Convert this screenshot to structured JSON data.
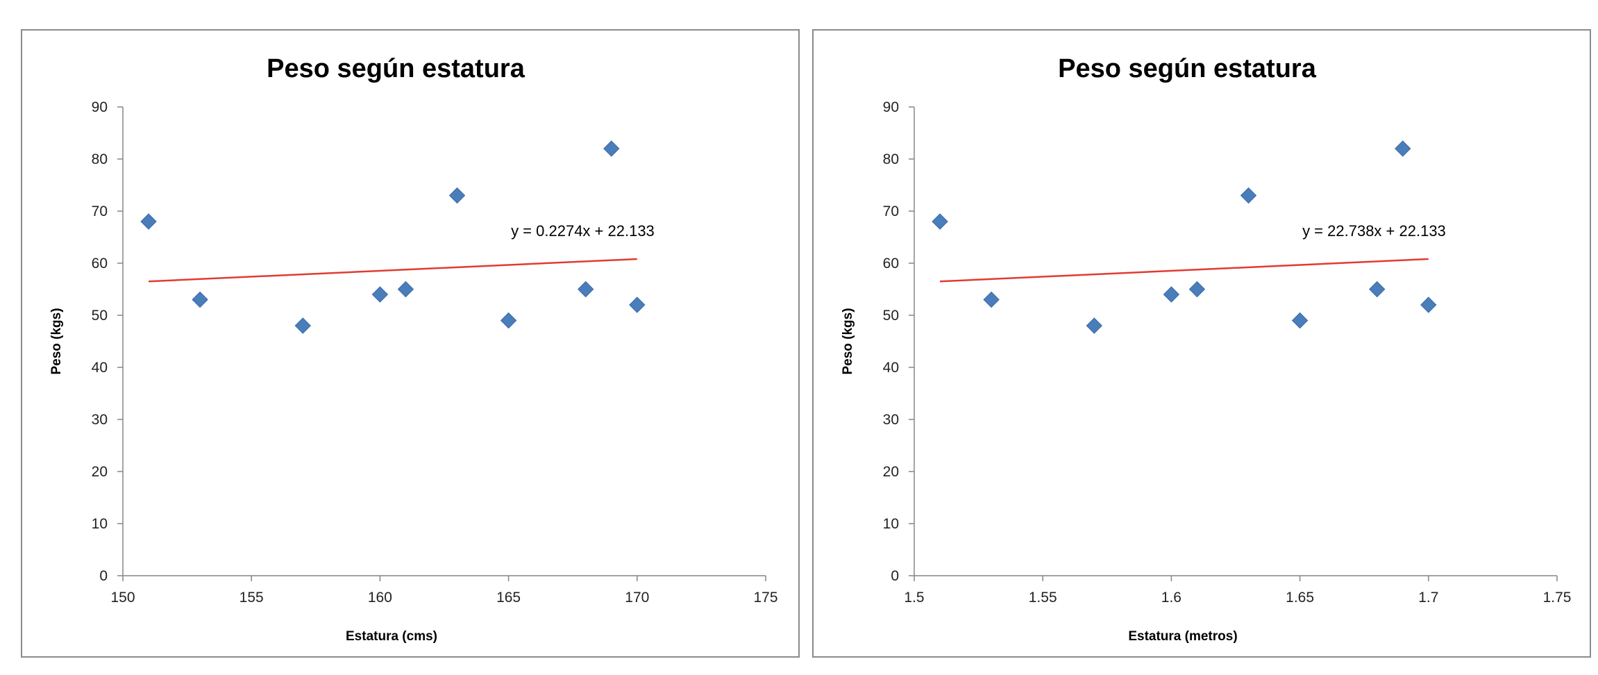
{
  "chart_data": [
    {
      "type": "scatter",
      "title": "Peso según estatura",
      "xlabel": "Estatura  (cms)",
      "ylabel": "Peso (kgs)",
      "xlim": [
        150,
        175
      ],
      "ylim": [
        0,
        90
      ],
      "x_ticks": [
        "150",
        "155",
        "160",
        "165",
        "170",
        "175"
      ],
      "y_ticks": [
        "0",
        "10",
        "20",
        "30",
        "40",
        "50",
        "60",
        "70",
        "80",
        "90"
      ],
      "grid": false,
      "legend": "none",
      "marker": "diamond",
      "marker_color": "#4a7ebb",
      "series": [
        {
          "x": [
            151,
            153,
            157,
            160,
            161,
            163,
            165,
            168,
            169,
            170
          ],
          "y": [
            68,
            53,
            48,
            54,
            55,
            73,
            49,
            55,
            82,
            52
          ]
        }
      ],
      "trendline": {
        "color": "#e03c31",
        "x_range": [
          151,
          170
        ],
        "y_range": [
          56.5,
          60.8
        ],
        "equation": "y = 0.2274x + 22.133"
      }
    },
    {
      "type": "scatter",
      "title": "Peso según estatura",
      "xlabel": "Estatura  (metros)",
      "ylabel": "Peso (kgs)",
      "xlim": [
        1.5,
        1.75
      ],
      "ylim": [
        0,
        90
      ],
      "x_ticks": [
        "1.5",
        "1.55",
        "1.6",
        "1.65",
        "1.7",
        "1.75"
      ],
      "y_ticks": [
        "0",
        "10",
        "20",
        "30",
        "40",
        "50",
        "60",
        "70",
        "80",
        "90"
      ],
      "grid": false,
      "legend": "none",
      "marker": "diamond",
      "marker_color": "#4a7ebb",
      "series": [
        {
          "x": [
            1.51,
            1.53,
            1.57,
            1.6,
            1.61,
            1.63,
            1.65,
            1.68,
            1.69,
            1.7
          ],
          "y": [
            68,
            53,
            48,
            54,
            55,
            73,
            49,
            55,
            82,
            52
          ]
        }
      ],
      "trendline": {
        "color": "#e03c31",
        "x_range": [
          1.51,
          1.7
        ],
        "y_range": [
          56.5,
          60.8
        ],
        "equation": "y = 22.738x + 22.133"
      }
    }
  ]
}
